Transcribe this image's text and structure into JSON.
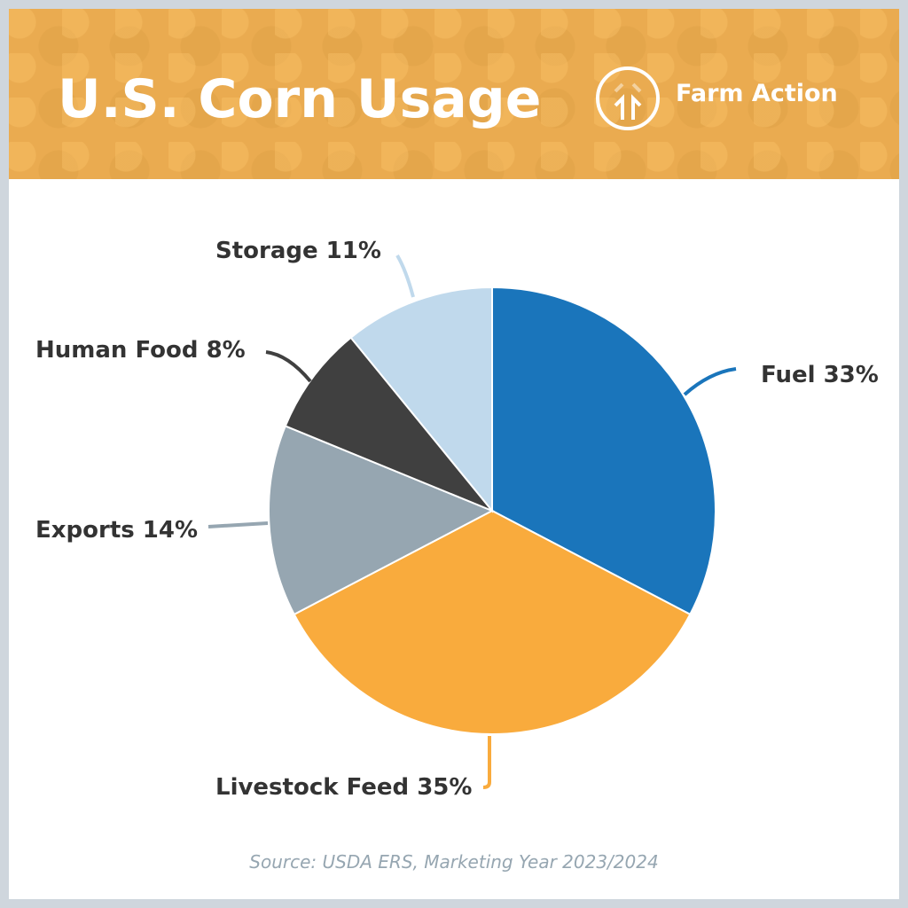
{
  "header": {
    "title": "U.S. Corn Usage",
    "brand": "Farm Action"
  },
  "chart_data": {
    "type": "pie",
    "title": "U.S. Corn Usage",
    "start": "top, clockwise",
    "slices": [
      {
        "label": "Fuel",
        "value": 33,
        "text": "Fuel 33%",
        "color": "#1a75bb"
      },
      {
        "label": "Livestock Feed",
        "value": 35,
        "text": "Livestock Feed 35%",
        "color": "#f9ab3d"
      },
      {
        "label": "Exports",
        "value": 14,
        "text": "Exports 14%",
        "color": "#96a6b1"
      },
      {
        "label": "Human Food",
        "value": 8,
        "text": "Human Food 8%",
        "color": "#404040"
      },
      {
        "label": "Storage",
        "value": 11,
        "text": "Storage 11%",
        "color": "#c0d9ec"
      }
    ],
    "source": "Source: USDA ERS, Marketing Year 2023/2024"
  }
}
